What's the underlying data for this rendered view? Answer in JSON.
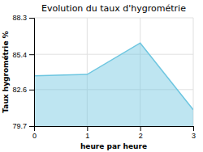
{
  "chart_data": {
    "type": "area",
    "title": "Evolution du taux d'hygrométrie",
    "xlabel": "heure par heure",
    "ylabel": "Taux hygrométrie %",
    "x": [
      0,
      1,
      2,
      3
    ],
    "values": [
      83.7,
      83.8,
      86.3,
      81.0
    ],
    "color": "#6ec6e0",
    "xlim": [
      0,
      3
    ],
    "ylim": [
      79.7,
      88.3
    ],
    "xticks": [
      0,
      1,
      2,
      3
    ],
    "yticks": [
      79.7,
      82.6,
      85.4,
      88.3
    ],
    "grid": true
  }
}
